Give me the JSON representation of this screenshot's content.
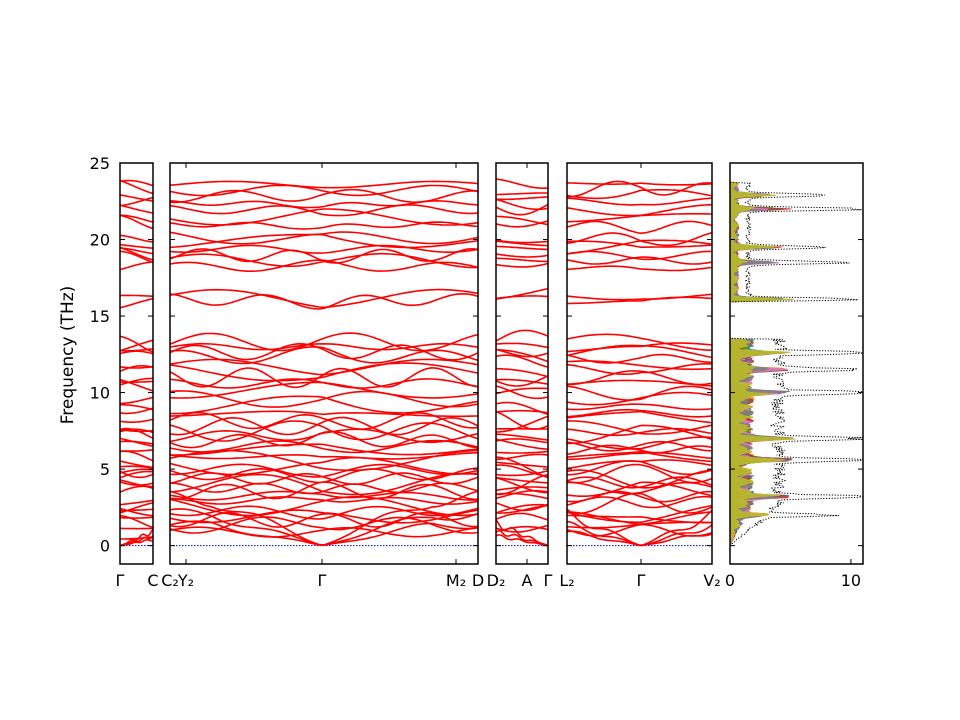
{
  "chart_data": {
    "type": "line",
    "figure": "phonon band structure and projected density of states",
    "ylabel": "Frequency (THz)",
    "ylim": [
      -1.2,
      25
    ],
    "yticks": [
      0,
      5,
      10,
      15,
      20,
      25
    ],
    "colors": {
      "bands": "#ff0000",
      "zero_line": "#0000cc",
      "total_dos": "#000000",
      "axes": "#000000"
    },
    "band_panels": [
      {
        "segments": [
          {
            "from": "Γ",
            "to": "C"
          }
        ],
        "tick_labels": [
          "Γ",
          "C"
        ]
      },
      {
        "segments": [
          {
            "from": "C₂",
            "to": "Y₂"
          },
          {
            "from": "Y₂",
            "to": "Γ"
          },
          {
            "from": "Γ",
            "to": "M₂"
          },
          {
            "from": "M₂",
            "to": "D"
          }
        ],
        "tick_labels": [
          "C₂",
          "Y₂",
          "Γ",
          "M₂",
          "D"
        ]
      },
      {
        "segments": [
          {
            "from": "D₂",
            "to": "A"
          },
          {
            "from": "A",
            "to": "Γ"
          }
        ],
        "tick_labels": [
          "D₂",
          "A",
          "Γ"
        ]
      },
      {
        "segments": [
          {
            "from": "L₂",
            "to": "Γ"
          },
          {
            "from": "Γ",
            "to": "V₂"
          }
        ],
        "tick_labels": [
          "L₂",
          "Γ",
          "V₂"
        ]
      }
    ],
    "band_summary": {
      "acoustic_branches_at_gamma": 0,
      "low_manifold_range": [
        0,
        13.5
      ],
      "gap_range": [
        13.5,
        16.0
      ],
      "high_manifold_range": [
        16.0,
        23.7
      ],
      "high_manifold_levels": [
        16.1,
        16.3,
        18.2,
        18.6,
        19.0,
        19.4,
        19.8,
        20.2,
        21.0,
        21.4,
        22.0,
        22.4,
        22.8,
        23.2,
        23.6
      ],
      "low_manifold_levels": [
        0.9,
        1.3,
        1.7,
        2.0,
        2.3,
        2.6,
        2.9,
        3.2,
        3.5,
        3.8,
        4.1,
        4.4,
        4.7,
        5.0,
        5.3,
        5.6,
        5.9,
        6.2,
        6.5,
        6.8,
        7.1,
        7.4,
        7.8,
        8.2,
        8.7,
        9.1,
        9.6,
        10.1,
        10.6,
        11.0,
        11.4,
        11.8,
        12.3,
        12.6,
        13.0,
        13.3
      ]
    },
    "dos_panel": {
      "xlim": [
        0,
        11
      ],
      "xticks": [
        0,
        10
      ],
      "total_dos_style": "dotted",
      "peaks": [
        {
          "freq": 16.1,
          "value": 11.0
        },
        {
          "freq": 22.9,
          "value": 7.5
        },
        {
          "freq": 22.0,
          "value": 11.0
        },
        {
          "freq": 19.5,
          "value": 7.5
        },
        {
          "freq": 18.5,
          "value": 8.0
        },
        {
          "freq": 12.6,
          "value": 10.0
        },
        {
          "freq": 11.5,
          "value": 10.5
        },
        {
          "freq": 10.0,
          "value": 11.0
        },
        {
          "freq": 7.0,
          "value": 10.5
        },
        {
          "freq": 5.6,
          "value": 11.0
        },
        {
          "freq": 3.2,
          "value": 11.0
        },
        {
          "freq": 2.0,
          "value": 5.5
        }
      ],
      "projected_colors": [
        "#1f77b4",
        "#ff7f0e",
        "#2ca02c",
        "#d62728",
        "#9467bd",
        "#8c564b",
        "#e377c2",
        "#7f7f7f",
        "#bcbd22"
      ]
    }
  }
}
